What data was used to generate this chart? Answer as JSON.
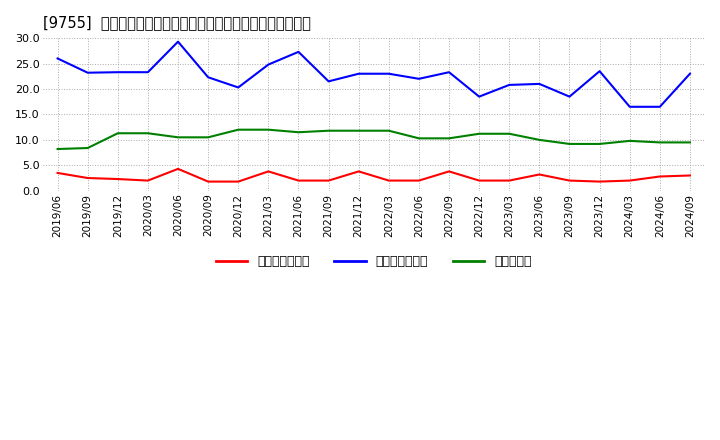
{
  "title": "[9755]  売上債権回転率、買入債務回転率、在庫回転率の推移",
  "xlabels": [
    "2019/06",
    "2019/09",
    "2019/12",
    "2020/03",
    "2020/06",
    "2020/09",
    "2020/12",
    "2021/03",
    "2021/06",
    "2021/09",
    "2021/12",
    "2022/03",
    "2022/06",
    "2022/09",
    "2022/12",
    "2023/03",
    "2023/06",
    "2023/09",
    "2023/12",
    "2024/03",
    "2024/06",
    "2024/09"
  ],
  "accounts_receivable_turnover": [
    3.5,
    2.5,
    2.3,
    2.0,
    4.3,
    1.8,
    1.8,
    3.8,
    2.0,
    2.0,
    3.8,
    2.0,
    2.0,
    3.8,
    2.0,
    2.0,
    3.2,
    2.0,
    1.8,
    2.0,
    2.8,
    3.0
  ],
  "accounts_payable_turnover": [
    26.0,
    23.2,
    23.3,
    23.3,
    29.3,
    22.3,
    20.3,
    24.8,
    27.3,
    21.5,
    23.0,
    23.0,
    22.0,
    23.3,
    18.5,
    20.8,
    21.0,
    18.5,
    23.5,
    16.5,
    16.5,
    23.0
  ],
  "inventory_turnover": [
    8.2,
    8.4,
    11.3,
    11.3,
    10.5,
    10.5,
    12.0,
    12.0,
    11.5,
    11.8,
    11.8,
    11.8,
    10.3,
    10.3,
    11.2,
    11.2,
    10.0,
    9.2,
    9.2,
    9.8,
    9.5,
    9.5
  ],
  "color_red": "#ff0000",
  "color_blue": "#0000ff",
  "color_green": "#008000",
  "ylim": [
    0.0,
    30.0
  ],
  "yticks": [
    0.0,
    5.0,
    10.0,
    15.0,
    20.0,
    25.0,
    30.0
  ],
  "legend_labels": [
    "売上債権回転率",
    "買入債務回転率",
    "在庫回転率"
  ],
  "background_color": "#ffffff",
  "grid_color": "#aaaaaa"
}
